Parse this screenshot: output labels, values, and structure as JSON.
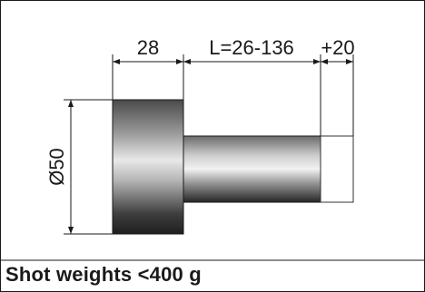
{
  "dimensions": {
    "flange_width": "28",
    "length_range": "L=26-136",
    "extension": "+20",
    "diameter": "Ø50"
  },
  "caption": "Shot weights <400 g"
}
